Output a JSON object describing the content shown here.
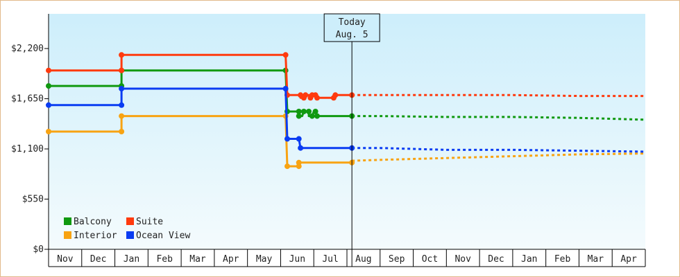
{
  "chart_data": {
    "type": "line",
    "title": "",
    "xlabel": "",
    "ylabel": "",
    "ylim": [
      0,
      2580
    ],
    "y_ticks": [
      {
        "value": 0,
        "label": "$0"
      },
      {
        "value": 550,
        "label": "$550"
      },
      {
        "value": 1100,
        "label": "$1,100"
      },
      {
        "value": 1650,
        "label": "$1,650"
      },
      {
        "value": 2200,
        "label": "$2,200"
      }
    ],
    "months": [
      "Nov",
      "Dec",
      "Jan",
      "Feb",
      "Mar",
      "Apr",
      "May",
      "Jun",
      "Jul",
      "Aug",
      "Sep",
      "Oct",
      "Nov",
      "Dec",
      "Jan",
      "Feb",
      "Mar",
      "Apr"
    ],
    "today": {
      "line1": "Today",
      "line2": "Aug. 5",
      "x": 9.15
    },
    "legend_position": "bottom-left",
    "grid": false,
    "background": {
      "top": "#cdeefb",
      "bottom": "#f4fbfd"
    },
    "series": [
      {
        "name": "Balcony",
        "color": "#109910",
        "points": [
          [
            0.0,
            1790
          ],
          [
            2.2,
            1790
          ],
          [
            2.2,
            1960
          ],
          [
            7.15,
            1960
          ],
          [
            7.2,
            1510
          ],
          [
            7.55,
            1510
          ],
          [
            7.55,
            1460
          ],
          [
            7.65,
            1460
          ],
          [
            7.7,
            1510
          ],
          [
            7.85,
            1510
          ],
          [
            7.85,
            1460
          ],
          [
            7.95,
            1460
          ],
          [
            8.0,
            1510
          ],
          [
            8.05,
            1510
          ],
          [
            8.1,
            1460
          ],
          [
            9.15,
            1460
          ]
        ],
        "points_marked": [
          [
            0.0,
            1790
          ],
          [
            2.2,
            1790
          ],
          [
            2.2,
            1960
          ],
          [
            7.15,
            1960
          ],
          [
            7.2,
            1510
          ],
          [
            7.55,
            1510
          ],
          [
            7.55,
            1460
          ],
          [
            7.7,
            1510
          ],
          [
            7.85,
            1510
          ],
          [
            7.95,
            1460
          ],
          [
            8.05,
            1510
          ],
          [
            8.1,
            1460
          ],
          [
            9.15,
            1460
          ]
        ],
        "forecast": [
          [
            9.15,
            1460
          ],
          [
            10.0,
            1460
          ],
          [
            12.0,
            1450
          ],
          [
            14.0,
            1450
          ],
          [
            16.0,
            1440
          ],
          [
            18.0,
            1420
          ]
        ]
      },
      {
        "name": "Suite",
        "color": "#ff3a0e",
        "points": [
          [
            0.0,
            1960
          ],
          [
            2.2,
            1960
          ],
          [
            2.2,
            2130
          ],
          [
            7.15,
            2130
          ],
          [
            7.2,
            1690
          ],
          [
            7.6,
            1690
          ],
          [
            7.6,
            1660
          ],
          [
            7.7,
            1660
          ],
          [
            7.75,
            1690
          ],
          [
            7.85,
            1690
          ],
          [
            7.9,
            1660
          ],
          [
            7.95,
            1690
          ],
          [
            8.05,
            1690
          ],
          [
            8.1,
            1660
          ],
          [
            8.6,
            1660
          ],
          [
            8.65,
            1690
          ],
          [
            9.15,
            1690
          ]
        ],
        "points_marked": [
          [
            0.0,
            1960
          ],
          [
            2.2,
            1960
          ],
          [
            2.2,
            2130
          ],
          [
            7.15,
            2130
          ],
          [
            7.2,
            1690
          ],
          [
            7.6,
            1690
          ],
          [
            7.7,
            1660
          ],
          [
            7.75,
            1690
          ],
          [
            7.9,
            1660
          ],
          [
            7.95,
            1690
          ],
          [
            8.05,
            1690
          ],
          [
            8.1,
            1660
          ],
          [
            8.6,
            1660
          ],
          [
            8.65,
            1690
          ],
          [
            9.15,
            1690
          ]
        ],
        "forecast": [
          [
            9.15,
            1690
          ],
          [
            10.0,
            1690
          ],
          [
            12.0,
            1690
          ],
          [
            14.0,
            1690
          ],
          [
            16.0,
            1680
          ],
          [
            18.0,
            1680
          ]
        ]
      },
      {
        "name": "Interior",
        "color": "#f8a312",
        "points": [
          [
            0.0,
            1290
          ],
          [
            2.2,
            1290
          ],
          [
            2.2,
            1460
          ],
          [
            7.15,
            1460
          ],
          [
            7.2,
            910
          ],
          [
            7.55,
            910
          ],
          [
            7.55,
            950
          ],
          [
            9.15,
            950
          ]
        ],
        "points_marked": [
          [
            0.0,
            1290
          ],
          [
            2.2,
            1290
          ],
          [
            2.2,
            1460
          ],
          [
            7.15,
            1460
          ],
          [
            7.2,
            910
          ],
          [
            7.55,
            910
          ],
          [
            7.55,
            950
          ],
          [
            9.15,
            950
          ]
        ],
        "forecast": [
          [
            9.15,
            970
          ],
          [
            10.0,
            980
          ],
          [
            12.0,
            1000
          ],
          [
            14.0,
            1020
          ],
          [
            16.0,
            1040
          ],
          [
            18.0,
            1050
          ]
        ]
      },
      {
        "name": "Ocean View",
        "color": "#0a3cf2",
        "points": [
          [
            0.0,
            1580
          ],
          [
            2.2,
            1580
          ],
          [
            2.2,
            1760
          ],
          [
            7.15,
            1760
          ],
          [
            7.2,
            1210
          ],
          [
            7.55,
            1210
          ],
          [
            7.6,
            1110
          ],
          [
            9.15,
            1110
          ]
        ],
        "points_marked": [
          [
            0.0,
            1580
          ],
          [
            2.2,
            1580
          ],
          [
            2.2,
            1760
          ],
          [
            7.15,
            1760
          ],
          [
            7.2,
            1210
          ],
          [
            7.55,
            1210
          ],
          [
            7.6,
            1110
          ],
          [
            9.15,
            1110
          ]
        ],
        "forecast": [
          [
            9.15,
            1110
          ],
          [
            10.0,
            1110
          ],
          [
            12.0,
            1090
          ],
          [
            14.0,
            1090
          ],
          [
            16.0,
            1080
          ],
          [
            18.0,
            1070
          ]
        ]
      }
    ],
    "legend_order": [
      "Balcony",
      "Suite",
      "Interior",
      "Ocean View"
    ]
  }
}
